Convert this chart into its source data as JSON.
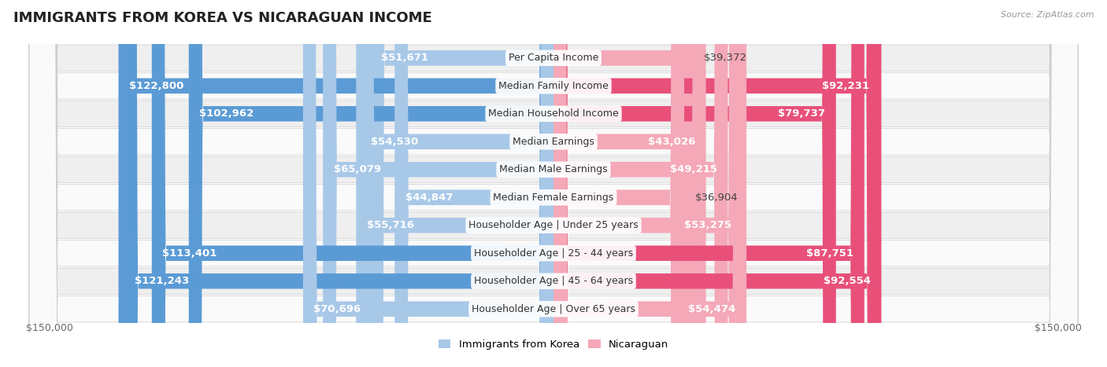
{
  "title": "IMMIGRANTS FROM KOREA VS NICARAGUAN INCOME",
  "source": "Source: ZipAtlas.com",
  "categories": [
    "Per Capita Income",
    "Median Family Income",
    "Median Household Income",
    "Median Earnings",
    "Median Male Earnings",
    "Median Female Earnings",
    "Householder Age | Under 25 years",
    "Householder Age | 25 - 44 years",
    "Householder Age | 45 - 64 years",
    "Householder Age | Over 65 years"
  ],
  "korea_values": [
    51671,
    122800,
    102962,
    54530,
    65079,
    44847,
    55716,
    113401,
    121243,
    70696
  ],
  "nicaragua_values": [
    39372,
    92231,
    79737,
    43026,
    49215,
    36904,
    53275,
    87751,
    92554,
    54474
  ],
  "korea_labels": [
    "$51,671",
    "$122,800",
    "$102,962",
    "$54,530",
    "$65,079",
    "$44,847",
    "$55,716",
    "$113,401",
    "$121,243",
    "$70,696"
  ],
  "nicaragua_labels": [
    "$39,372",
    "$92,231",
    "$79,737",
    "$43,026",
    "$49,215",
    "$36,904",
    "$53,275",
    "$87,751",
    "$92,554",
    "$54,474"
  ],
  "max_value": 150000,
  "korea_color_light": "#A8C8E8",
  "korea_color_dark": "#5B9BD5",
  "nicaragua_color_light": "#F4A8B8",
  "nicaragua_color_dark": "#E8507A",
  "korea_threshold": 80000,
  "nicaragua_threshold": 70000,
  "bg_row_color": "#EFEFEF",
  "bg_alt_color": "#FAFAFA",
  "label_fontsize": 9.5,
  "cat_fontsize": 9,
  "title_fontsize": 13,
  "legend_korea": "Immigrants from Korea",
  "legend_nicaragua": "Nicaraguan"
}
